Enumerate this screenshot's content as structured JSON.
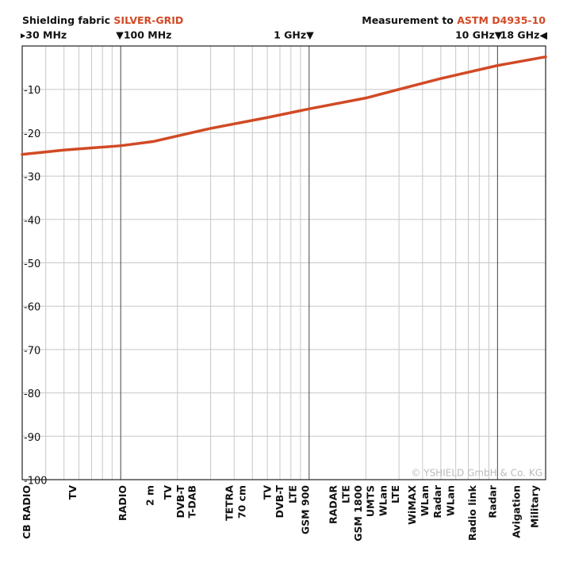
{
  "chart_data": {
    "type": "line",
    "title_prefix": "Shielding fabric ",
    "title_product": "SILVER-GRID",
    "subtitle_prefix": "Measurement to ",
    "subtitle_standard": "ASTM D4935-10",
    "copyright": "© YSHIELD GmbH & Co. KG",
    "xscale": "log",
    "xlim": [
      30,
      18000
    ],
    "ylim": [
      -100,
      0
    ],
    "xticks": [
      {
        "value": 30,
        "label": "▸30 MHz"
      },
      {
        "value": 100,
        "label": "▼100 MHz"
      },
      {
        "value": 1000,
        "label": "1 GHz▼"
      },
      {
        "value": 10000,
        "label": "10 GHz▼"
      },
      {
        "value": 18000,
        "label": "18 GHz◀"
      }
    ],
    "xminor": [
      40,
      50,
      60,
      70,
      80,
      90,
      200,
      300,
      400,
      500,
      600,
      700,
      800,
      900,
      2000,
      3000,
      4000,
      5000,
      6000,
      7000,
      8000,
      9000
    ],
    "yticks": [
      -10,
      -20,
      -30,
      -40,
      -50,
      -60,
      -70,
      -80,
      -90,
      -100
    ],
    "grid": true,
    "series": [
      {
        "name": "SILVER-GRID",
        "color": "#d14a25",
        "x": [
          30,
          50,
          100,
          150,
          300,
          600,
          1000,
          2000,
          5000,
          10000,
          18000
        ],
        "values": [
          -25,
          -24,
          -23,
          -22,
          -19,
          -16.5,
          -14.5,
          -12,
          -7.5,
          -4.5,
          -2.5
        ]
      }
    ],
    "bands": [
      {
        "label": "CB RADIO",
        "x": 32
      },
      {
        "label": "TV",
        "x": 56
      },
      {
        "label": "RADIO",
        "x": 103
      },
      {
        "label": "2 m",
        "x": 144
      },
      {
        "label": "TV",
        "x": 179
      },
      {
        "label": "DVB-T",
        "x": 209
      },
      {
        "label": "T-DAB",
        "x": 241
      },
      {
        "label": "TETRA",
        "x": 380
      },
      {
        "label": "70 cm",
        "x": 443
      },
      {
        "label": "TV",
        "x": 604
      },
      {
        "label": "DVB-T",
        "x": 705
      },
      {
        "label": "LTE",
        "x": 824
      },
      {
        "label": "GSM 900",
        "x": 963
      },
      {
        "label": "RADAR",
        "x": 1350
      },
      {
        "label": "LTE",
        "x": 1580
      },
      {
        "label": "GSM 1800",
        "x": 1840
      },
      {
        "label": "UMTS",
        "x": 2130
      },
      {
        "label": "WLan",
        "x": 2490
      },
      {
        "label": "LTE",
        "x": 2900
      },
      {
        "label": "WiMAX",
        "x": 3550
      },
      {
        "label": "WLan",
        "x": 4150
      },
      {
        "label": "Radar",
        "x": 4850
      },
      {
        "label": "WLan",
        "x": 5670
      },
      {
        "label": "Radio link",
        "x": 7420
      },
      {
        "label": "Radar",
        "x": 9480
      },
      {
        "label": "Avigation",
        "x": 12700
      },
      {
        "label": "Military",
        "x": 15900
      }
    ]
  }
}
